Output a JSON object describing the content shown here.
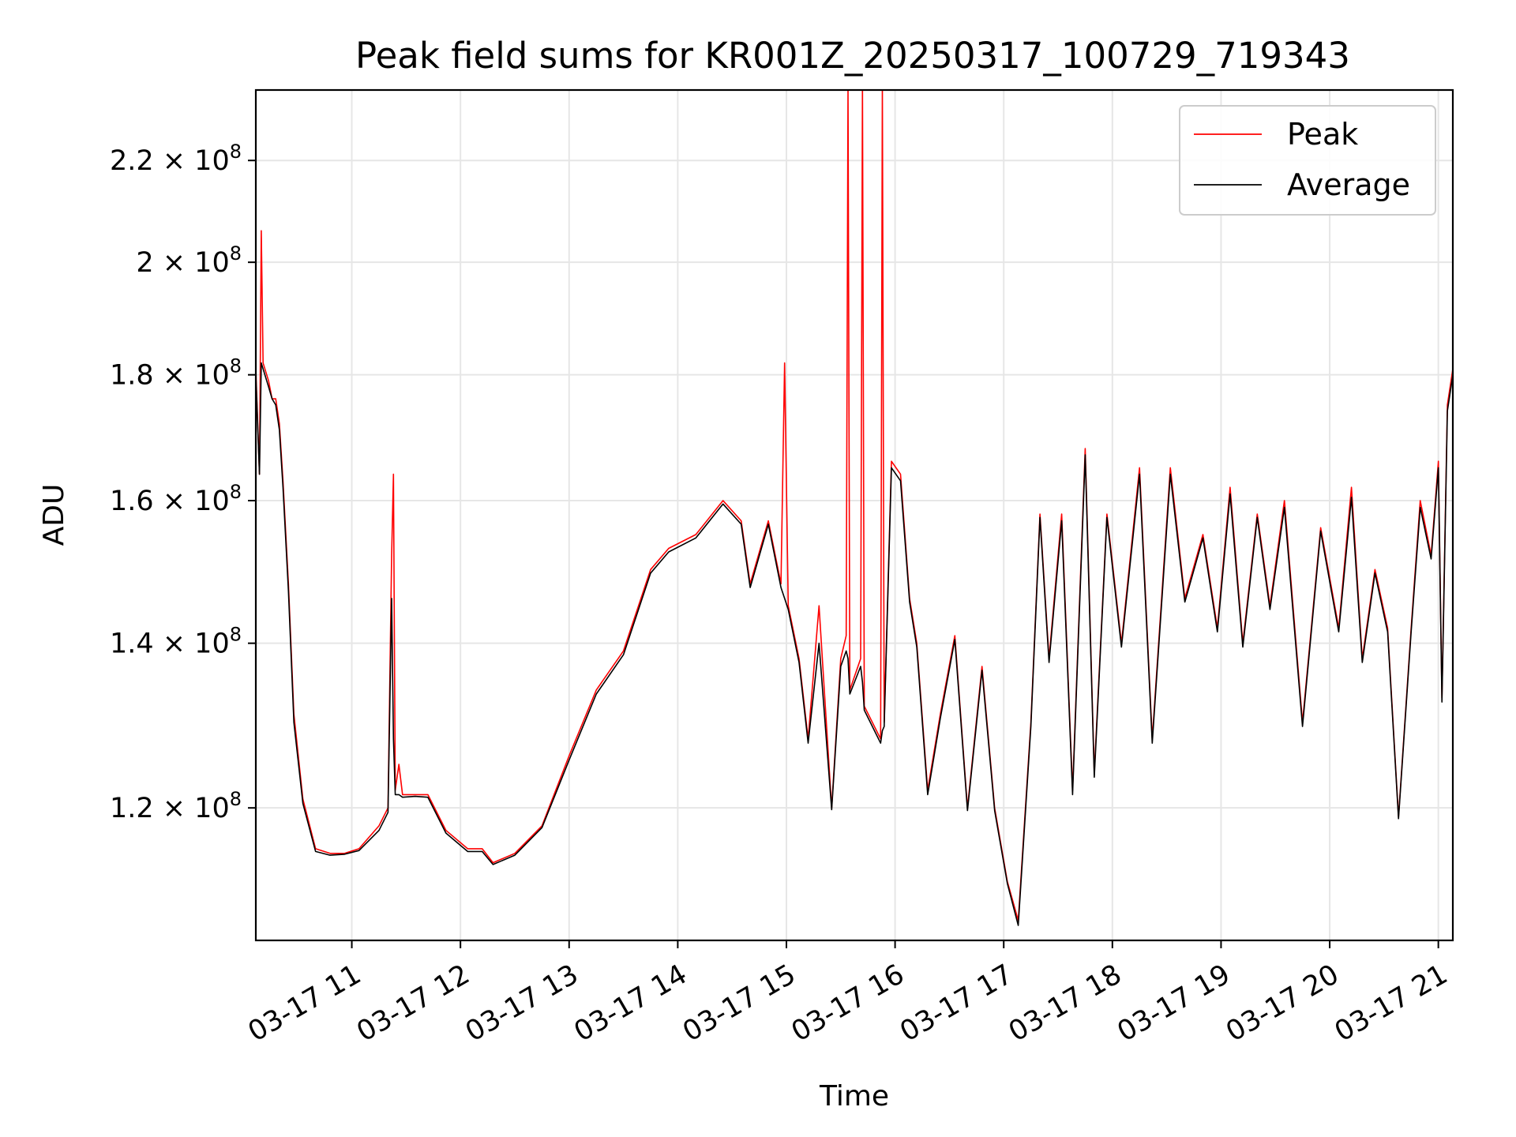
{
  "chart_data": {
    "type": "line",
    "title": "Peak field sums for KR001Z_20250317_100729_719343",
    "xlabel": "Time",
    "ylabel": "ADU",
    "y_scale": "log",
    "xlim": [
      "2025-03-17 10:07",
      "2025-03-17 21:08"
    ],
    "ylim": [
      106000000,
      235000000
    ],
    "grid": true,
    "legend_position": "top-right",
    "x_ticks": [
      {
        "t": "2025-03-17 11:00",
        "label": "03-17 11"
      },
      {
        "t": "2025-03-17 12:00",
        "label": "03-17 12"
      },
      {
        "t": "2025-03-17 13:00",
        "label": "03-17 13"
      },
      {
        "t": "2025-03-17 14:00",
        "label": "03-17 14"
      },
      {
        "t": "2025-03-17 15:00",
        "label": "03-17 15"
      },
      {
        "t": "2025-03-17 16:00",
        "label": "03-17 16"
      },
      {
        "t": "2025-03-17 17:00",
        "label": "03-17 17"
      },
      {
        "t": "2025-03-17 18:00",
        "label": "03-17 18"
      },
      {
        "t": "2025-03-17 19:00",
        "label": "03-17 19"
      },
      {
        "t": "2025-03-17 20:00",
        "label": "03-17 20"
      },
      {
        "t": "2025-03-17 21:00",
        "label": "03-17 21"
      }
    ],
    "y_ticks": [
      {
        "value": 120000000,
        "mantissa": "1.2",
        "base": "10",
        "exp": "8"
      },
      {
        "value": 140000000,
        "mantissa": "1.4",
        "base": "10",
        "exp": "8"
      },
      {
        "value": 160000000,
        "mantissa": "1.6",
        "base": "10",
        "exp": "8"
      },
      {
        "value": 180000000,
        "mantissa": "1.8",
        "base": "10",
        "exp": "8"
      },
      {
        "value": 200000000,
        "mantissa": "2",
        "base": "10",
        "exp": "8"
      },
      {
        "value": 220000000,
        "mantissa": "2.2",
        "base": "10",
        "exp": "8"
      }
    ],
    "series": [
      {
        "name": "Peak",
        "color": "#ff0000",
        "points": [
          [
            "2025-03-17 10:07",
            181000000
          ],
          [
            "2025-03-17 10:09",
            164000000
          ],
          [
            "2025-03-17 10:10",
            206000000
          ],
          [
            "2025-03-17 10:11",
            182000000
          ],
          [
            "2025-03-17 10:14",
            179000000
          ],
          [
            "2025-03-17 10:16",
            176000000
          ],
          [
            "2025-03-17 10:18",
            176000000
          ],
          [
            "2025-03-17 10:20",
            172000000
          ],
          [
            "2025-03-17 10:22",
            163000000
          ],
          [
            "2025-03-17 10:25",
            148000000
          ],
          [
            "2025-03-17 10:28",
            131000000
          ],
          [
            "2025-03-17 10:33",
            121000000
          ],
          [
            "2025-03-17 10:40",
            115500000
          ],
          [
            "2025-03-17 10:48",
            115000000
          ],
          [
            "2025-03-17 10:56",
            115000000
          ],
          [
            "2025-03-17 11:04",
            115500000
          ],
          [
            "2025-03-17 11:15",
            118000000
          ],
          [
            "2025-03-17 11:20",
            120000000
          ],
          [
            "2025-03-17 11:22",
            152000000
          ],
          [
            "2025-03-17 11:23",
            164000000
          ],
          [
            "2025-03-17 11:24",
            122000000
          ],
          [
            "2025-03-17 11:26",
            125000000
          ],
          [
            "2025-03-17 11:28",
            121500000
          ],
          [
            "2025-03-17 11:35",
            121500000
          ],
          [
            "2025-03-17 11:42",
            121500000
          ],
          [
            "2025-03-17 11:52",
            117500000
          ],
          [
            "2025-03-17 12:04",
            115500000
          ],
          [
            "2025-03-17 12:12",
            115500000
          ],
          [
            "2025-03-17 12:18",
            114000000
          ],
          [
            "2025-03-17 12:30",
            115000000
          ],
          [
            "2025-03-17 12:45",
            118000000
          ],
          [
            "2025-03-17 13:00",
            126000000
          ],
          [
            "2025-03-17 13:15",
            134000000
          ],
          [
            "2025-03-17 13:30",
            139000000
          ],
          [
            "2025-03-17 13:45",
            150000000
          ],
          [
            "2025-03-17 13:55",
            153000000
          ],
          [
            "2025-03-17 14:10",
            155000000
          ],
          [
            "2025-03-17 14:25",
            160000000
          ],
          [
            "2025-03-17 14:35",
            157000000
          ],
          [
            "2025-03-17 14:40",
            148000000
          ],
          [
            "2025-03-17 14:50",
            157000000
          ],
          [
            "2025-03-17 14:57",
            148000000
          ],
          [
            "2025-03-17 14:59",
            182000000
          ],
          [
            "2025-03-17 15:01",
            145000000
          ],
          [
            "2025-03-17 15:07",
            138000000
          ],
          [
            "2025-03-17 15:12",
            128000000
          ],
          [
            "2025-03-17 15:18",
            145000000
          ],
          [
            "2025-03-17 15:25",
            120000000
          ],
          [
            "2025-03-17 15:30",
            138000000
          ],
          [
            "2025-03-17 15:33",
            141000000
          ],
          [
            "2025-03-17 15:34",
            236000000
          ],
          [
            "2025-03-17 15:35",
            134000000
          ],
          [
            "2025-03-17 15:41",
            138000000
          ],
          [
            "2025-03-17 15:42",
            236000000
          ],
          [
            "2025-03-17 15:43",
            132000000
          ],
          [
            "2025-03-17 15:52",
            128000000
          ],
          [
            "2025-03-17 15:53",
            236000000
          ],
          [
            "2025-03-17 15:54",
            130000000
          ],
          [
            "2025-03-17 15:58",
            166000000
          ],
          [
            "2025-03-17 16:03",
            164000000
          ],
          [
            "2025-03-17 16:08",
            146000000
          ],
          [
            "2025-03-17 16:12",
            140000000
          ],
          [
            "2025-03-17 16:18",
            122000000
          ],
          [
            "2025-03-17 16:25",
            131000000
          ],
          [
            "2025-03-17 16:33",
            141000000
          ],
          [
            "2025-03-17 16:40",
            120000000
          ],
          [
            "2025-03-17 16:48",
            137000000
          ],
          [
            "2025-03-17 16:55",
            120000000
          ],
          [
            "2025-03-17 17:02",
            112000000
          ],
          [
            "2025-03-17 17:08",
            108000000
          ],
          [
            "2025-03-17 17:15",
            130000000
          ],
          [
            "2025-03-17 17:20",
            158000000
          ],
          [
            "2025-03-17 17:25",
            138000000
          ],
          [
            "2025-03-17 17:32",
            158000000
          ],
          [
            "2025-03-17 17:38",
            122000000
          ],
          [
            "2025-03-17 17:45",
            168000000
          ],
          [
            "2025-03-17 17:50",
            124000000
          ],
          [
            "2025-03-17 17:57",
            158000000
          ],
          [
            "2025-03-17 18:05",
            140000000
          ],
          [
            "2025-03-17 18:15",
            165000000
          ],
          [
            "2025-03-17 18:22",
            128000000
          ],
          [
            "2025-03-17 18:32",
            165000000
          ],
          [
            "2025-03-17 18:40",
            146000000
          ],
          [
            "2025-03-17 18:50",
            155000000
          ],
          [
            "2025-03-17 18:58",
            142000000
          ],
          [
            "2025-03-17 19:05",
            162000000
          ],
          [
            "2025-03-17 19:12",
            140000000
          ],
          [
            "2025-03-17 19:20",
            158000000
          ],
          [
            "2025-03-17 19:27",
            145000000
          ],
          [
            "2025-03-17 19:35",
            160000000
          ],
          [
            "2025-03-17 19:45",
            130000000
          ],
          [
            "2025-03-17 19:55",
            156000000
          ],
          [
            "2025-03-17 20:05",
            142000000
          ],
          [
            "2025-03-17 20:12",
            162000000
          ],
          [
            "2025-03-17 20:18",
            138000000
          ],
          [
            "2025-03-17 20:25",
            150000000
          ],
          [
            "2025-03-17 20:32",
            142000000
          ],
          [
            "2025-03-17 20:38",
            119000000
          ],
          [
            "2025-03-17 20:45",
            142000000
          ],
          [
            "2025-03-17 20:50",
            160000000
          ],
          [
            "2025-03-17 20:56",
            152000000
          ],
          [
            "2025-03-17 21:00",
            166000000
          ],
          [
            "2025-03-17 21:02",
            133000000
          ],
          [
            "2025-03-17 21:05",
            175000000
          ],
          [
            "2025-03-17 21:08",
            181000000
          ]
        ]
      },
      {
        "name": "Average",
        "color": "#000000",
        "points": [
          [
            "2025-03-17 10:07",
            180000000
          ],
          [
            "2025-03-17 10:09",
            164000000
          ],
          [
            "2025-03-17 10:10",
            182000000
          ],
          [
            "2025-03-17 10:11",
            181000000
          ],
          [
            "2025-03-17 10:14",
            178000000
          ],
          [
            "2025-03-17 10:16",
            176000000
          ],
          [
            "2025-03-17 10:18",
            175000000
          ],
          [
            "2025-03-17 10:20",
            171000000
          ],
          [
            "2025-03-17 10:22",
            162000000
          ],
          [
            "2025-03-17 10:25",
            147000000
          ],
          [
            "2025-03-17 10:28",
            130000000
          ],
          [
            "2025-03-17 10:33",
            120500000
          ],
          [
            "2025-03-17 10:40",
            115200000
          ],
          [
            "2025-03-17 10:48",
            114800000
          ],
          [
            "2025-03-17 10:56",
            114900000
          ],
          [
            "2025-03-17 11:04",
            115300000
          ],
          [
            "2025-03-17 11:15",
            117500000
          ],
          [
            "2025-03-17 11:20",
            119500000
          ],
          [
            "2025-03-17 11:22",
            146000000
          ],
          [
            "2025-03-17 11:23",
            128000000
          ],
          [
            "2025-03-17 11:24",
            121500000
          ],
          [
            "2025-03-17 11:26",
            121500000
          ],
          [
            "2025-03-17 11:28",
            121200000
          ],
          [
            "2025-03-17 11:35",
            121300000
          ],
          [
            "2025-03-17 11:42",
            121200000
          ],
          [
            "2025-03-17 11:52",
            117200000
          ],
          [
            "2025-03-17 12:04",
            115200000
          ],
          [
            "2025-03-17 12:12",
            115200000
          ],
          [
            "2025-03-17 12:18",
            113800000
          ],
          [
            "2025-03-17 12:30",
            114800000
          ],
          [
            "2025-03-17 12:45",
            117800000
          ],
          [
            "2025-03-17 13:00",
            125500000
          ],
          [
            "2025-03-17 13:15",
            133500000
          ],
          [
            "2025-03-17 13:30",
            138500000
          ],
          [
            "2025-03-17 13:45",
            149500000
          ],
          [
            "2025-03-17 13:55",
            152500000
          ],
          [
            "2025-03-17 14:10",
            154500000
          ],
          [
            "2025-03-17 14:25",
            159500000
          ],
          [
            "2025-03-17 14:35",
            156500000
          ],
          [
            "2025-03-17 14:40",
            147500000
          ],
          [
            "2025-03-17 14:50",
            156500000
          ],
          [
            "2025-03-17 14:57",
            147500000
          ],
          [
            "2025-03-17 14:59",
            146000000
          ],
          [
            "2025-03-17 15:01",
            144500000
          ],
          [
            "2025-03-17 15:07",
            137500000
          ],
          [
            "2025-03-17 15:12",
            127500000
          ],
          [
            "2025-03-17 15:18",
            140000000
          ],
          [
            "2025-03-17 15:25",
            119800000
          ],
          [
            "2025-03-17 15:30",
            137000000
          ],
          [
            "2025-03-17 15:33",
            139000000
          ],
          [
            "2025-03-17 15:34",
            138000000
          ],
          [
            "2025-03-17 15:35",
            133500000
          ],
          [
            "2025-03-17 15:41",
            137000000
          ],
          [
            "2025-03-17 15:42",
            135000000
          ],
          [
            "2025-03-17 15:43",
            131500000
          ],
          [
            "2025-03-17 15:52",
            127500000
          ],
          [
            "2025-03-17 15:53",
            129000000
          ],
          [
            "2025-03-17 15:54",
            129500000
          ],
          [
            "2025-03-17 15:58",
            165000000
          ],
          [
            "2025-03-17 16:03",
            163000000
          ],
          [
            "2025-03-17 16:08",
            145500000
          ],
          [
            "2025-03-17 16:12",
            139500000
          ],
          [
            "2025-03-17 16:18",
            121500000
          ],
          [
            "2025-03-17 16:25",
            130500000
          ],
          [
            "2025-03-17 16:33",
            140500000
          ],
          [
            "2025-03-17 16:40",
            119700000
          ],
          [
            "2025-03-17 16:48",
            136500000
          ],
          [
            "2025-03-17 16:55",
            119700000
          ],
          [
            "2025-03-17 17:02",
            111800000
          ],
          [
            "2025-03-17 17:08",
            107500000
          ],
          [
            "2025-03-17 17:15",
            129500000
          ],
          [
            "2025-03-17 17:20",
            157500000
          ],
          [
            "2025-03-17 17:25",
            137500000
          ],
          [
            "2025-03-17 17:32",
            157000000
          ],
          [
            "2025-03-17 17:38",
            121500000
          ],
          [
            "2025-03-17 17:45",
            167000000
          ],
          [
            "2025-03-17 17:50",
            123500000
          ],
          [
            "2025-03-17 17:57",
            157500000
          ],
          [
            "2025-03-17 18:05",
            139500000
          ],
          [
            "2025-03-17 18:15",
            164000000
          ],
          [
            "2025-03-17 18:22",
            127500000
          ],
          [
            "2025-03-17 18:32",
            164000000
          ],
          [
            "2025-03-17 18:40",
            145500000
          ],
          [
            "2025-03-17 18:50",
            154500000
          ],
          [
            "2025-03-17 18:58",
            141500000
          ],
          [
            "2025-03-17 19:05",
            161000000
          ],
          [
            "2025-03-17 19:12",
            139500000
          ],
          [
            "2025-03-17 19:20",
            157500000
          ],
          [
            "2025-03-17 19:27",
            144500000
          ],
          [
            "2025-03-17 19:35",
            159000000
          ],
          [
            "2025-03-17 19:45",
            129500000
          ],
          [
            "2025-03-17 19:55",
            155500000
          ],
          [
            "2025-03-17 20:05",
            141500000
          ],
          [
            "2025-03-17 20:12",
            160500000
          ],
          [
            "2025-03-17 20:18",
            137500000
          ],
          [
            "2025-03-17 20:25",
            149500000
          ],
          [
            "2025-03-17 20:32",
            141500000
          ],
          [
            "2025-03-17 20:38",
            118800000
          ],
          [
            "2025-03-17 20:45",
            141500000
          ],
          [
            "2025-03-17 20:50",
            159000000
          ],
          [
            "2025-03-17 20:56",
            151500000
          ],
          [
            "2025-03-17 21:00",
            165000000
          ],
          [
            "2025-03-17 21:02",
            132500000
          ],
          [
            "2025-03-17 21:05",
            174000000
          ],
          [
            "2025-03-17 21:08",
            180000000
          ]
        ]
      }
    ]
  }
}
